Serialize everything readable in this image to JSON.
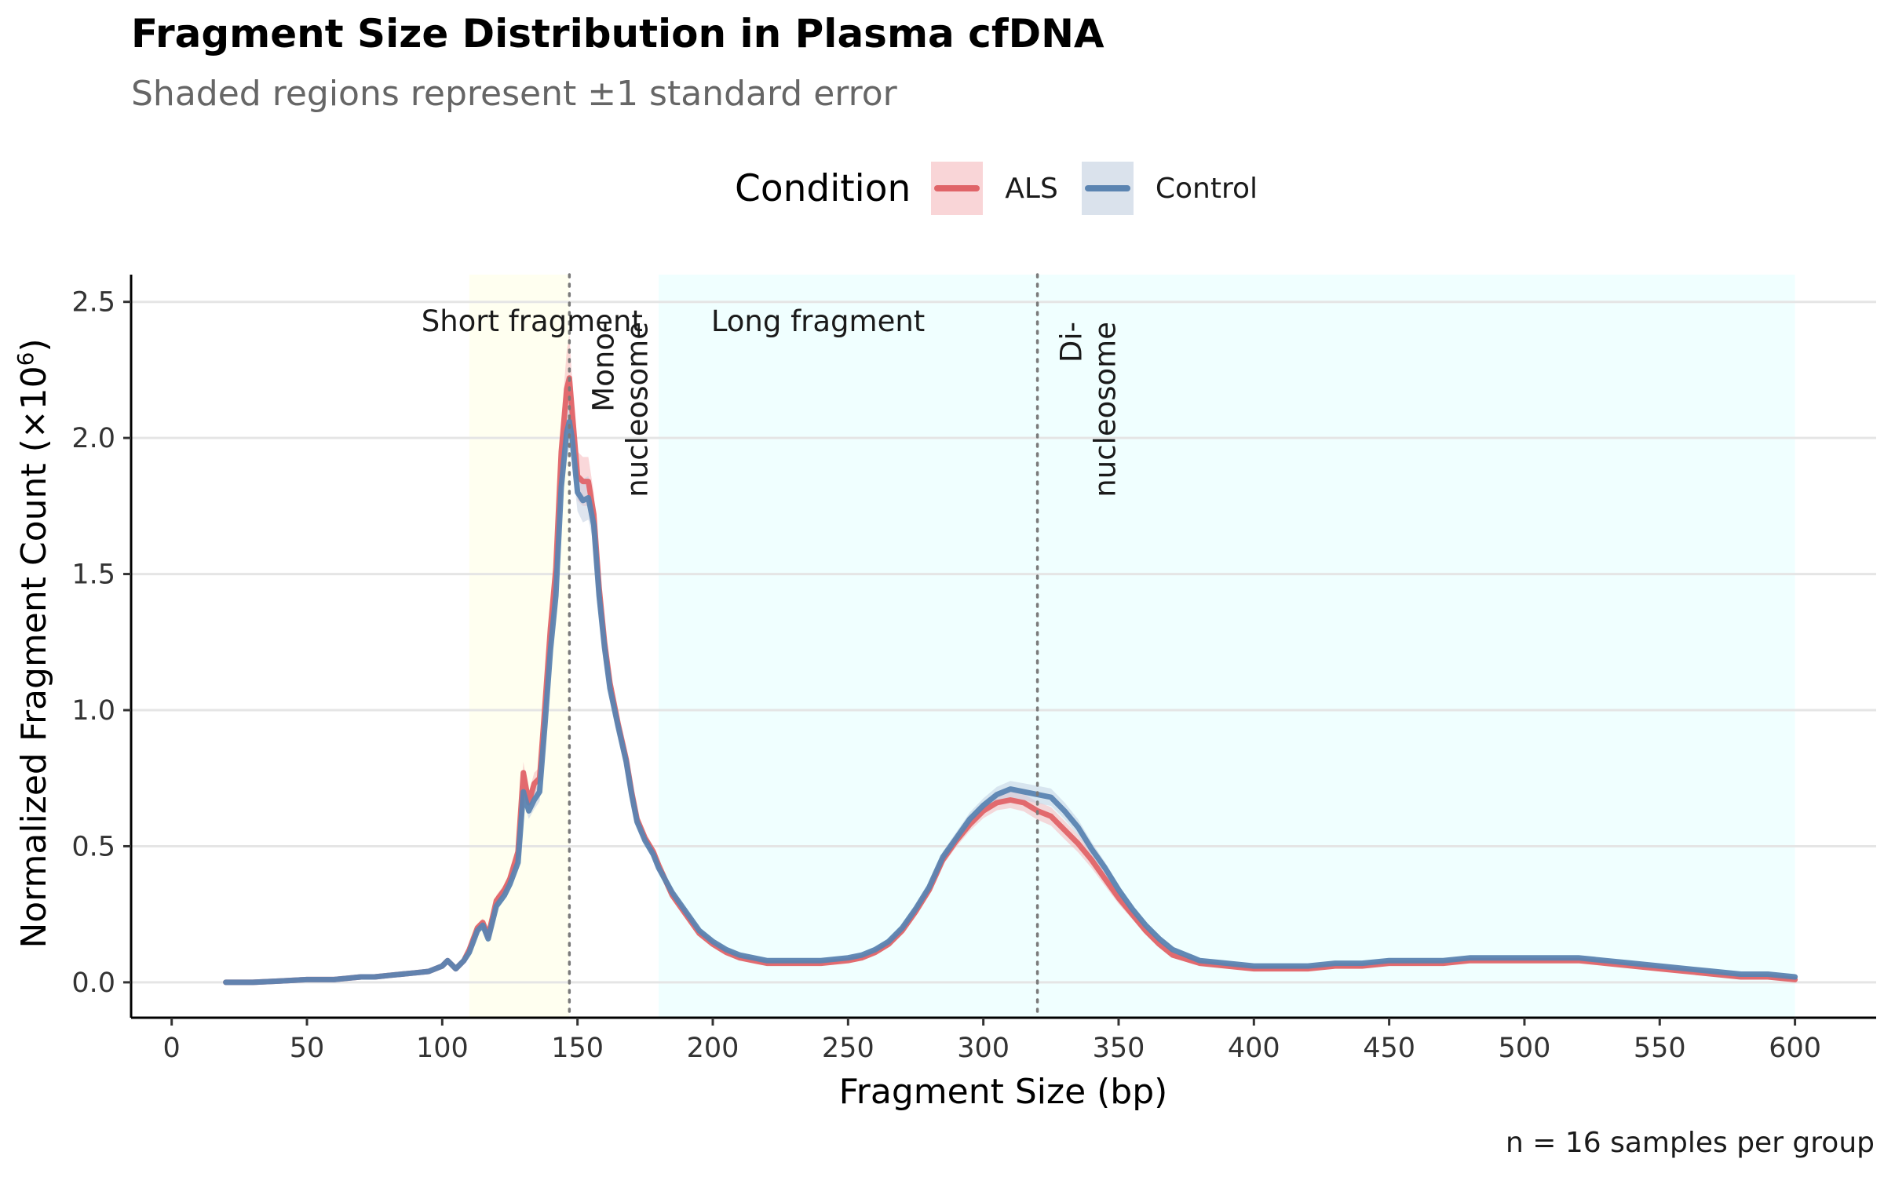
{
  "chart_data": {
    "type": "line",
    "title": "Fragment Size Distribution in Plasma cfDNA",
    "subtitle": "Shaded regions represent ±1 standard error",
    "xlabel": "Fragment Size (bp)",
    "ylabel": "Normalized Fragment Count (×10",
    "ylabel_sup": "6",
    "ylabel_close": ")",
    "caption": "n = 16 samples per group",
    "xlim": [
      -15,
      630
    ],
    "ylim": [
      -0.13,
      2.6
    ],
    "x_ticks": [
      0,
      50,
      100,
      150,
      200,
      250,
      300,
      350,
      400,
      450,
      500,
      550,
      600
    ],
    "y_ticks": [
      0.0,
      0.5,
      1.0,
      1.5,
      2.0,
      2.5
    ],
    "y_tick_labels": [
      "0.0",
      "0.5",
      "1.0",
      "1.5",
      "2.0",
      "2.5"
    ],
    "grid": "horizontal major",
    "legend": {
      "title": "Condition",
      "position": "top"
    },
    "regions": [
      {
        "label": "Short fragment",
        "x_start": 110,
        "x_end": 147,
        "color": "#fffff0"
      },
      {
        "label": "Long fragment",
        "x_start": 180,
        "x_end": 600,
        "color": "#f0ffff"
      }
    ],
    "reference_lines": [
      {
        "x": 147,
        "label_line1": "Mono-",
        "label_line2": "nucleosome"
      },
      {
        "x": 320,
        "label_line1": "Di-",
        "label_line2": "nucleosome"
      }
    ],
    "series": [
      {
        "name": "ALS",
        "color": "#e06468",
        "fill": "#f5b8bc",
        "x": [
          20,
          30,
          40,
          50,
          55,
          60,
          65,
          70,
          75,
          80,
          85,
          90,
          95,
          100,
          102,
          105,
          108,
          110,
          113,
          115,
          117,
          120,
          123,
          125,
          128,
          130,
          132,
          134,
          136,
          138,
          140,
          142,
          144,
          146,
          147,
          148,
          150,
          152,
          154,
          156,
          158,
          160,
          162,
          165,
          168,
          170,
          172,
          175,
          178,
          180,
          185,
          190,
          195,
          200,
          205,
          210,
          215,
          220,
          230,
          240,
          250,
          255,
          260,
          265,
          270,
          275,
          280,
          285,
          290,
          295,
          300,
          305,
          310,
          315,
          320,
          325,
          330,
          335,
          340,
          345,
          350,
          355,
          360,
          365,
          370,
          380,
          390,
          400,
          410,
          420,
          430,
          440,
          450,
          460,
          470,
          480,
          490,
          500,
          510,
          520,
          530,
          540,
          550,
          560,
          570,
          580,
          590,
          600
        ],
        "values": [
          0.0,
          0.0,
          0.005,
          0.01,
          0.01,
          0.01,
          0.015,
          0.02,
          0.02,
          0.025,
          0.03,
          0.035,
          0.04,
          0.06,
          0.08,
          0.05,
          0.08,
          0.12,
          0.2,
          0.22,
          0.17,
          0.3,
          0.34,
          0.38,
          0.48,
          0.77,
          0.66,
          0.73,
          0.75,
          1.02,
          1.3,
          1.52,
          1.95,
          2.18,
          2.22,
          2.1,
          1.86,
          1.84,
          1.84,
          1.72,
          1.45,
          1.25,
          1.1,
          0.95,
          0.82,
          0.7,
          0.6,
          0.53,
          0.48,
          0.43,
          0.32,
          0.25,
          0.18,
          0.14,
          0.11,
          0.09,
          0.08,
          0.07,
          0.07,
          0.07,
          0.08,
          0.09,
          0.11,
          0.14,
          0.19,
          0.26,
          0.34,
          0.45,
          0.52,
          0.58,
          0.63,
          0.66,
          0.67,
          0.66,
          0.63,
          0.61,
          0.56,
          0.51,
          0.45,
          0.38,
          0.31,
          0.25,
          0.19,
          0.14,
          0.1,
          0.07,
          0.06,
          0.05,
          0.05,
          0.05,
          0.06,
          0.06,
          0.07,
          0.07,
          0.07,
          0.08,
          0.08,
          0.08,
          0.08,
          0.08,
          0.07,
          0.06,
          0.05,
          0.04,
          0.03,
          0.02,
          0.02,
          0.01
        ],
        "se": [
          0.002,
          0.002,
          0.003,
          0.003,
          0.003,
          0.003,
          0.003,
          0.003,
          0.003,
          0.003,
          0.003,
          0.003,
          0.004,
          0.005,
          0.005,
          0.005,
          0.006,
          0.01,
          0.015,
          0.015,
          0.015,
          0.02,
          0.02,
          0.02,
          0.025,
          0.04,
          0.035,
          0.04,
          0.04,
          0.05,
          0.07,
          0.08,
          0.11,
          0.14,
          0.16,
          0.12,
          0.09,
          0.09,
          0.09,
          0.08,
          0.06,
          0.05,
          0.04,
          0.035,
          0.03,
          0.025,
          0.02,
          0.015,
          0.012,
          0.01,
          0.01,
          0.01,
          0.008,
          0.006,
          0.005,
          0.004,
          0.004,
          0.004,
          0.004,
          0.004,
          0.005,
          0.006,
          0.007,
          0.009,
          0.012,
          0.015,
          0.017,
          0.02,
          0.022,
          0.024,
          0.027,
          0.028,
          0.03,
          0.032,
          0.033,
          0.034,
          0.034,
          0.032,
          0.03,
          0.026,
          0.022,
          0.018,
          0.015,
          0.012,
          0.01,
          0.008,
          0.006,
          0.005,
          0.005,
          0.005,
          0.005,
          0.005,
          0.005,
          0.005,
          0.005,
          0.005,
          0.005,
          0.005,
          0.005,
          0.005,
          0.005,
          0.004,
          0.004,
          0.004,
          0.003,
          0.003,
          0.003,
          0.002
        ]
      },
      {
        "name": "Control",
        "color": "#5b84b1",
        "fill": "#c2d0e2",
        "x": [
          20,
          30,
          40,
          50,
          55,
          60,
          65,
          70,
          75,
          80,
          85,
          90,
          95,
          100,
          102,
          105,
          108,
          110,
          113,
          115,
          117,
          120,
          123,
          125,
          128,
          130,
          132,
          134,
          136,
          138,
          140,
          142,
          144,
          146,
          147,
          148,
          150,
          152,
          154,
          156,
          158,
          160,
          162,
          165,
          168,
          170,
          172,
          175,
          178,
          180,
          185,
          190,
          195,
          200,
          205,
          210,
          215,
          220,
          230,
          240,
          250,
          255,
          260,
          265,
          270,
          275,
          280,
          285,
          290,
          295,
          300,
          305,
          310,
          315,
          320,
          325,
          330,
          335,
          340,
          345,
          350,
          355,
          360,
          365,
          370,
          380,
          390,
          400,
          410,
          420,
          430,
          440,
          450,
          460,
          470,
          480,
          490,
          500,
          510,
          520,
          530,
          540,
          550,
          560,
          570,
          580,
          590,
          600
        ],
        "values": [
          0.0,
          0.0,
          0.005,
          0.01,
          0.01,
          0.01,
          0.015,
          0.02,
          0.02,
          0.025,
          0.03,
          0.035,
          0.04,
          0.06,
          0.08,
          0.05,
          0.08,
          0.11,
          0.19,
          0.21,
          0.16,
          0.28,
          0.32,
          0.36,
          0.44,
          0.7,
          0.63,
          0.67,
          0.7,
          0.95,
          1.22,
          1.42,
          1.82,
          2.02,
          2.06,
          2.0,
          1.8,
          1.77,
          1.78,
          1.68,
          1.42,
          1.23,
          1.08,
          0.94,
          0.81,
          0.69,
          0.59,
          0.52,
          0.47,
          0.42,
          0.33,
          0.26,
          0.19,
          0.15,
          0.12,
          0.1,
          0.09,
          0.08,
          0.08,
          0.08,
          0.09,
          0.1,
          0.12,
          0.15,
          0.2,
          0.27,
          0.35,
          0.46,
          0.53,
          0.6,
          0.65,
          0.69,
          0.71,
          0.7,
          0.69,
          0.68,
          0.63,
          0.57,
          0.49,
          0.42,
          0.34,
          0.27,
          0.21,
          0.16,
          0.12,
          0.08,
          0.07,
          0.06,
          0.06,
          0.06,
          0.07,
          0.07,
          0.08,
          0.08,
          0.08,
          0.09,
          0.09,
          0.09,
          0.09,
          0.09,
          0.08,
          0.07,
          0.06,
          0.05,
          0.04,
          0.03,
          0.03,
          0.02
        ],
        "se": [
          0.002,
          0.002,
          0.003,
          0.003,
          0.003,
          0.003,
          0.003,
          0.003,
          0.003,
          0.003,
          0.003,
          0.003,
          0.004,
          0.005,
          0.005,
          0.005,
          0.006,
          0.01,
          0.014,
          0.014,
          0.014,
          0.018,
          0.018,
          0.02,
          0.022,
          0.035,
          0.03,
          0.035,
          0.035,
          0.045,
          0.06,
          0.07,
          0.09,
          0.1,
          0.1,
          0.09,
          0.07,
          0.08,
          0.08,
          0.07,
          0.05,
          0.04,
          0.035,
          0.03,
          0.025,
          0.02,
          0.018,
          0.014,
          0.012,
          0.01,
          0.01,
          0.01,
          0.008,
          0.006,
          0.005,
          0.004,
          0.004,
          0.004,
          0.004,
          0.004,
          0.005,
          0.006,
          0.007,
          0.009,
          0.012,
          0.015,
          0.017,
          0.02,
          0.022,
          0.024,
          0.026,
          0.028,
          0.03,
          0.031,
          0.032,
          0.032,
          0.031,
          0.029,
          0.026,
          0.022,
          0.019,
          0.016,
          0.013,
          0.011,
          0.009,
          0.007,
          0.006,
          0.005,
          0.005,
          0.005,
          0.005,
          0.005,
          0.005,
          0.005,
          0.005,
          0.005,
          0.005,
          0.005,
          0.005,
          0.005,
          0.005,
          0.004,
          0.004,
          0.004,
          0.003,
          0.003,
          0.003,
          0.002
        ]
      }
    ]
  },
  "colors": {
    "als_line": "#e06468",
    "als_fill": "#f5b8bc",
    "control_line": "#5b84b1",
    "control_fill": "#c2d0e2",
    "grid": "#e5e5e5",
    "axis": "#000000",
    "ref_line": "#7a7a7a"
  }
}
